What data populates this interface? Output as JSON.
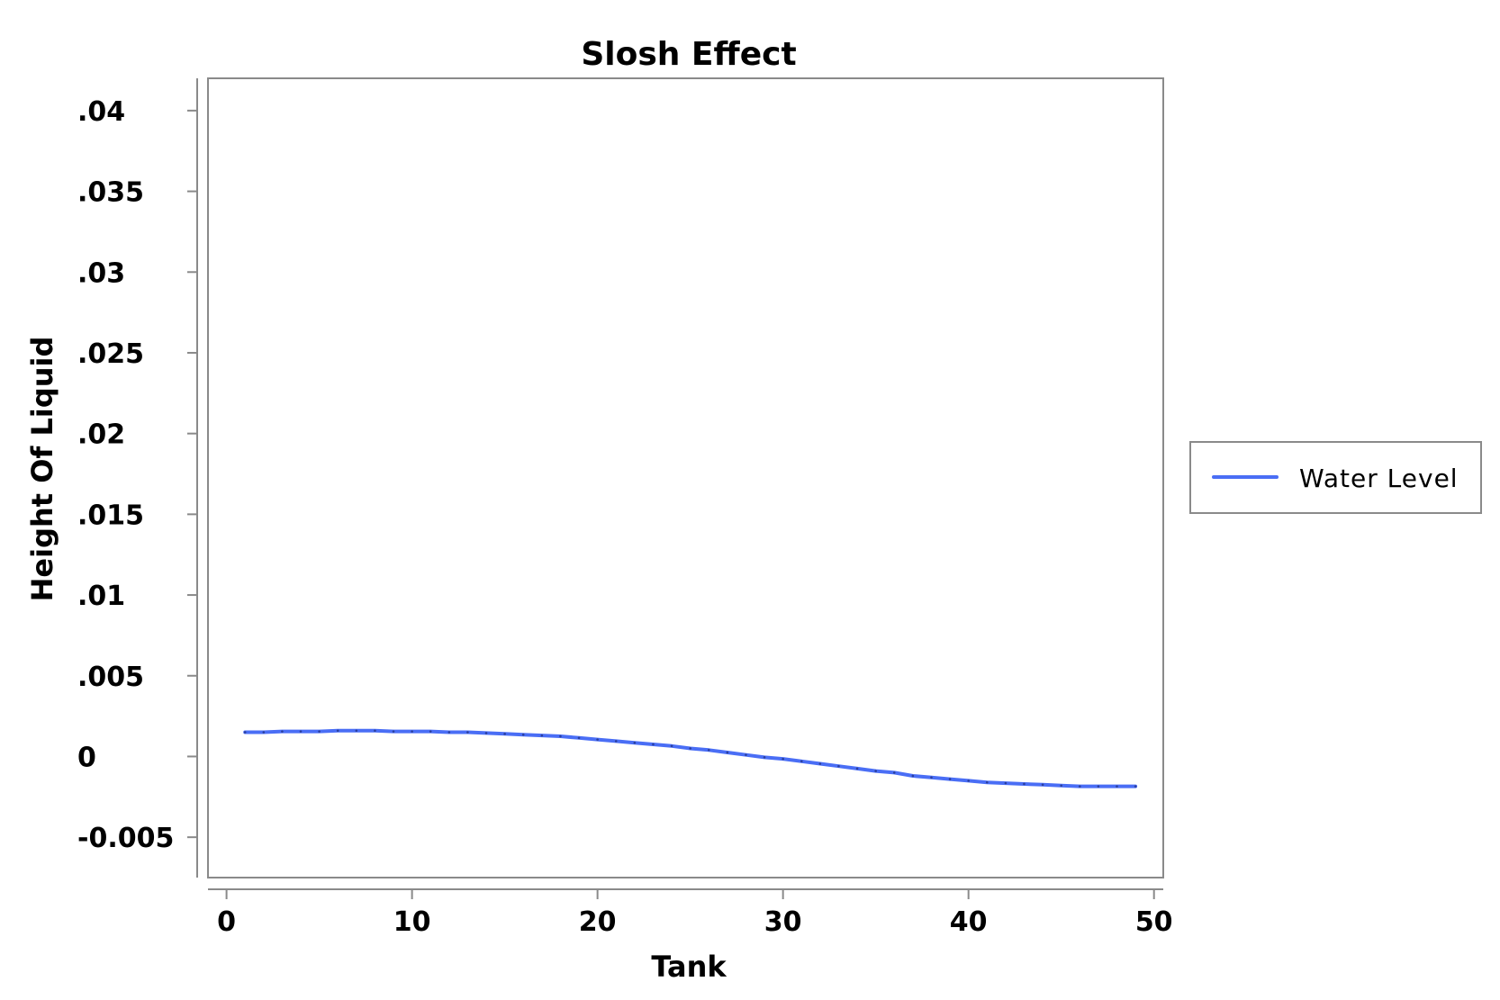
{
  "chart_data": {
    "type": "line",
    "title": "Slosh Effect",
    "xlabel": "Tank",
    "ylabel": "Height Of Liquid",
    "xlim": [
      -1,
      50.5
    ],
    "ylim": [
      -0.0075,
      0.042
    ],
    "x_ticks": [
      0,
      10,
      20,
      30,
      40,
      50
    ],
    "x_tick_labels": [
      "0",
      "10",
      "20",
      "30",
      "40",
      "50"
    ],
    "y_ticks": [
      -0.005,
      0,
      0.005,
      0.01,
      0.015,
      0.02,
      0.025,
      0.03,
      0.035,
      0.04
    ],
    "y_tick_labels": [
      "-0.005",
      "0",
      ".005",
      ".01",
      ".015",
      ".02",
      ".025",
      ".03",
      ".035",
      ".04"
    ],
    "grid": false,
    "legend_position": "right",
    "series": [
      {
        "name": "Water Level",
        "color": "#4a6ef5",
        "x": [
          1,
          2,
          3,
          4,
          5,
          6,
          7,
          8,
          9,
          10,
          11,
          12,
          13,
          14,
          15,
          16,
          17,
          18,
          19,
          20,
          21,
          22,
          23,
          24,
          25,
          26,
          27,
          28,
          29,
          30,
          31,
          32,
          33,
          34,
          35,
          36,
          37,
          38,
          39,
          40,
          41,
          42,
          43,
          44,
          45,
          46,
          47,
          48,
          49
        ],
        "values": [
          0.0015,
          0.0015,
          0.00155,
          0.00155,
          0.00155,
          0.0016,
          0.0016,
          0.0016,
          0.00155,
          0.00155,
          0.00155,
          0.0015,
          0.0015,
          0.00145,
          0.0014,
          0.00135,
          0.0013,
          0.00125,
          0.00115,
          0.00105,
          0.00095,
          0.00085,
          0.00075,
          0.00065,
          0.0005,
          0.0004,
          0.00025,
          0.0001,
          -5e-05,
          -0.00015,
          -0.0003,
          -0.00045,
          -0.0006,
          -0.00075,
          -0.0009,
          -0.001,
          -0.0012,
          -0.0013,
          -0.0014,
          -0.0015,
          -0.0016,
          -0.00165,
          -0.0017,
          -0.00175,
          -0.0018,
          -0.00185,
          -0.00185,
          -0.00185,
          -0.00185
        ]
      }
    ]
  }
}
